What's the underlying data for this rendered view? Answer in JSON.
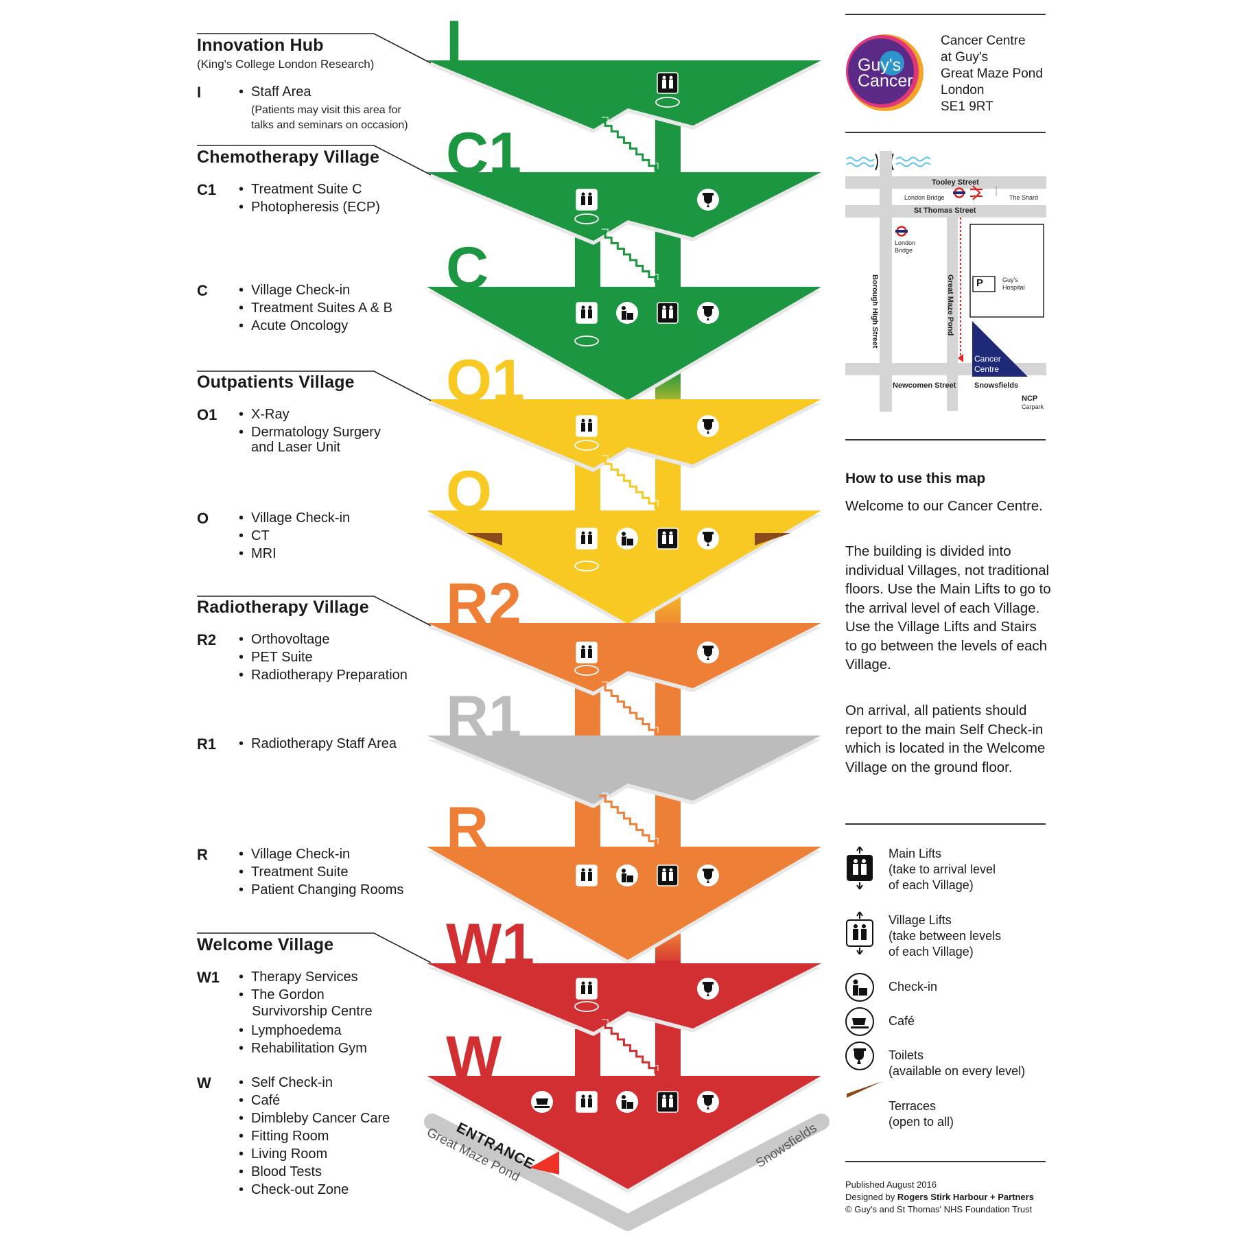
{
  "colors": {
    "green": "#1d9641",
    "green_dark": "#16803a",
    "yellow": "#f8c823",
    "orange": "#ee7f37",
    "grey": "#bcbcbc",
    "red": "#d22f33",
    "terrace": "#8a4a1c",
    "logo_purple": "#5a2a86",
    "logo_pink": "#e0367a",
    "underground_red": "#dc241f",
    "parking_navy": "#1e2a78"
  },
  "levels": [
    {
      "code": "I",
      "color": "green"
    },
    {
      "code": "C1",
      "color": "green"
    },
    {
      "code": "C",
      "color": "green"
    },
    {
      "code": "O1",
      "color": "yellow"
    },
    {
      "code": "O",
      "color": "yellow"
    },
    {
      "code": "R2",
      "color": "orange"
    },
    {
      "code": "R1",
      "color": "grey"
    },
    {
      "code": "R",
      "color": "orange"
    },
    {
      "code": "W1",
      "color": "red"
    },
    {
      "code": "W",
      "color": "red"
    }
  ],
  "villages": {
    "innovation": {
      "title": "Innovation Hub",
      "subtitle": "(King's College London Research)",
      "code": "I",
      "items": [
        "Staff Area"
      ],
      "note1": "(Patients may visit this area for",
      "note2": "talks and seminars on occasion)"
    },
    "chemo": {
      "title": "Chemotherapy Village",
      "c1_code": "C1",
      "c1_items": [
        "Treatment Suite C",
        "Photopheresis (ECP)"
      ],
      "c_code": "C",
      "c_items": [
        "Village Check-in",
        "Treatment Suites A & B",
        "Acute Oncology"
      ]
    },
    "outpatients": {
      "title": "Outpatients Village",
      "o1_code": "O1",
      "o1_items": [
        "X-Ray",
        "Dermatology Surgery"
      ],
      "o1_item_cont": "and Laser Unit",
      "o_code": "O",
      "o_items": [
        "Village Check-in",
        "CT",
        "MRI"
      ]
    },
    "radio": {
      "title": "Radiotherapy Village",
      "r2_code": "R2",
      "r2_items": [
        "Orthovoltage",
        "PET Suite",
        "Radiotherapy Preparation"
      ],
      "r1_code": "R1",
      "r1_items": [
        "Radiotherapy Staff Area"
      ],
      "r_code": "R",
      "r_items": [
        "Village Check-in",
        "Treatment Suite",
        "Patient Changing Rooms"
      ]
    },
    "welcome": {
      "title": "Welcome Village",
      "w1_code": "W1",
      "w1_items": [
        "Therapy Services",
        "The Gordon"
      ],
      "w1_item_cont": "Survivorship Centre",
      "w1_items2": [
        "Lymphoedema",
        "Rehabilitation Gym"
      ],
      "w_code": "W",
      "w_items": [
        "Self Check-in",
        "Café",
        "Dimbleby Cancer Care",
        "Fitting Room",
        "Living Room",
        "Blood Tests",
        "Check-out Zone"
      ]
    }
  },
  "entrance": {
    "label": "ENTRANCE",
    "road_left": "Great Maze Pond",
    "road_right": "Snowsfields"
  },
  "logo": {
    "line1": "Guy's",
    "line2": "Cancer"
  },
  "address": [
    "Cancer Centre",
    "at Guy's",
    "Great Maze Pond",
    "London",
    "SE1 9RT"
  ],
  "location_map": {
    "tooley": "Tooley Street",
    "london_bridge_station": "London Bridge",
    "the_shard": "The Shard",
    "st_thomas": "St Thomas Street",
    "london_bridge_tube_1": "London",
    "london_bridge_tube_2": "Bridge",
    "borough_high": "Borough High Street",
    "great_maze_pond": "Great Maze Pond",
    "guys_hospital_1": "Guy's",
    "guys_hospital_2": "Hospital",
    "cancer_centre_1": "Cancer",
    "cancer_centre_2": "Centre",
    "newcomen": "Newcomen Street",
    "snowsfields": "Snowsfields",
    "ncp": "NCP",
    "carpark": "Carpark",
    "parking": "P"
  },
  "how_to": {
    "title": "How to use this map",
    "p1": "Welcome to our Cancer Centre.",
    "p2": "The building is divided into individual Villages, not traditional floors. Use the Main Lifts to go to the arrival level of each Village. Use the Village Lifts and Stairs to go between the levels of each Village.",
    "p3": "On arrival, all patients should report to the main Self Check-in which is located in the Welcome Village on the ground floor."
  },
  "key": {
    "main_lifts": [
      "Main Lifts",
      "(take to arrival level",
      "of each Village)"
    ],
    "village_lifts": [
      "Village Lifts",
      "(take between levels",
      "of each Village)"
    ],
    "checkin": "Check-in",
    "cafe": "Café",
    "toilets": [
      "Toilets",
      "(available on every level)"
    ],
    "terraces": [
      "Terraces",
      "(open to all)"
    ]
  },
  "footer": {
    "published": "Published August 2016",
    "designed_prefix": "Designed by",
    "designed_by": "Rogers Stirk Harbour + Partners",
    "copyright": "© Guy's and St Thomas' NHS Foundation Trust"
  },
  "icons": [
    "village-lift-icon",
    "main-lift-icon",
    "checkin-icon",
    "cafe-icon",
    "toilet-icon",
    "stairs-icon",
    "terrace-icon",
    "underground-icon",
    "rail-icon"
  ]
}
